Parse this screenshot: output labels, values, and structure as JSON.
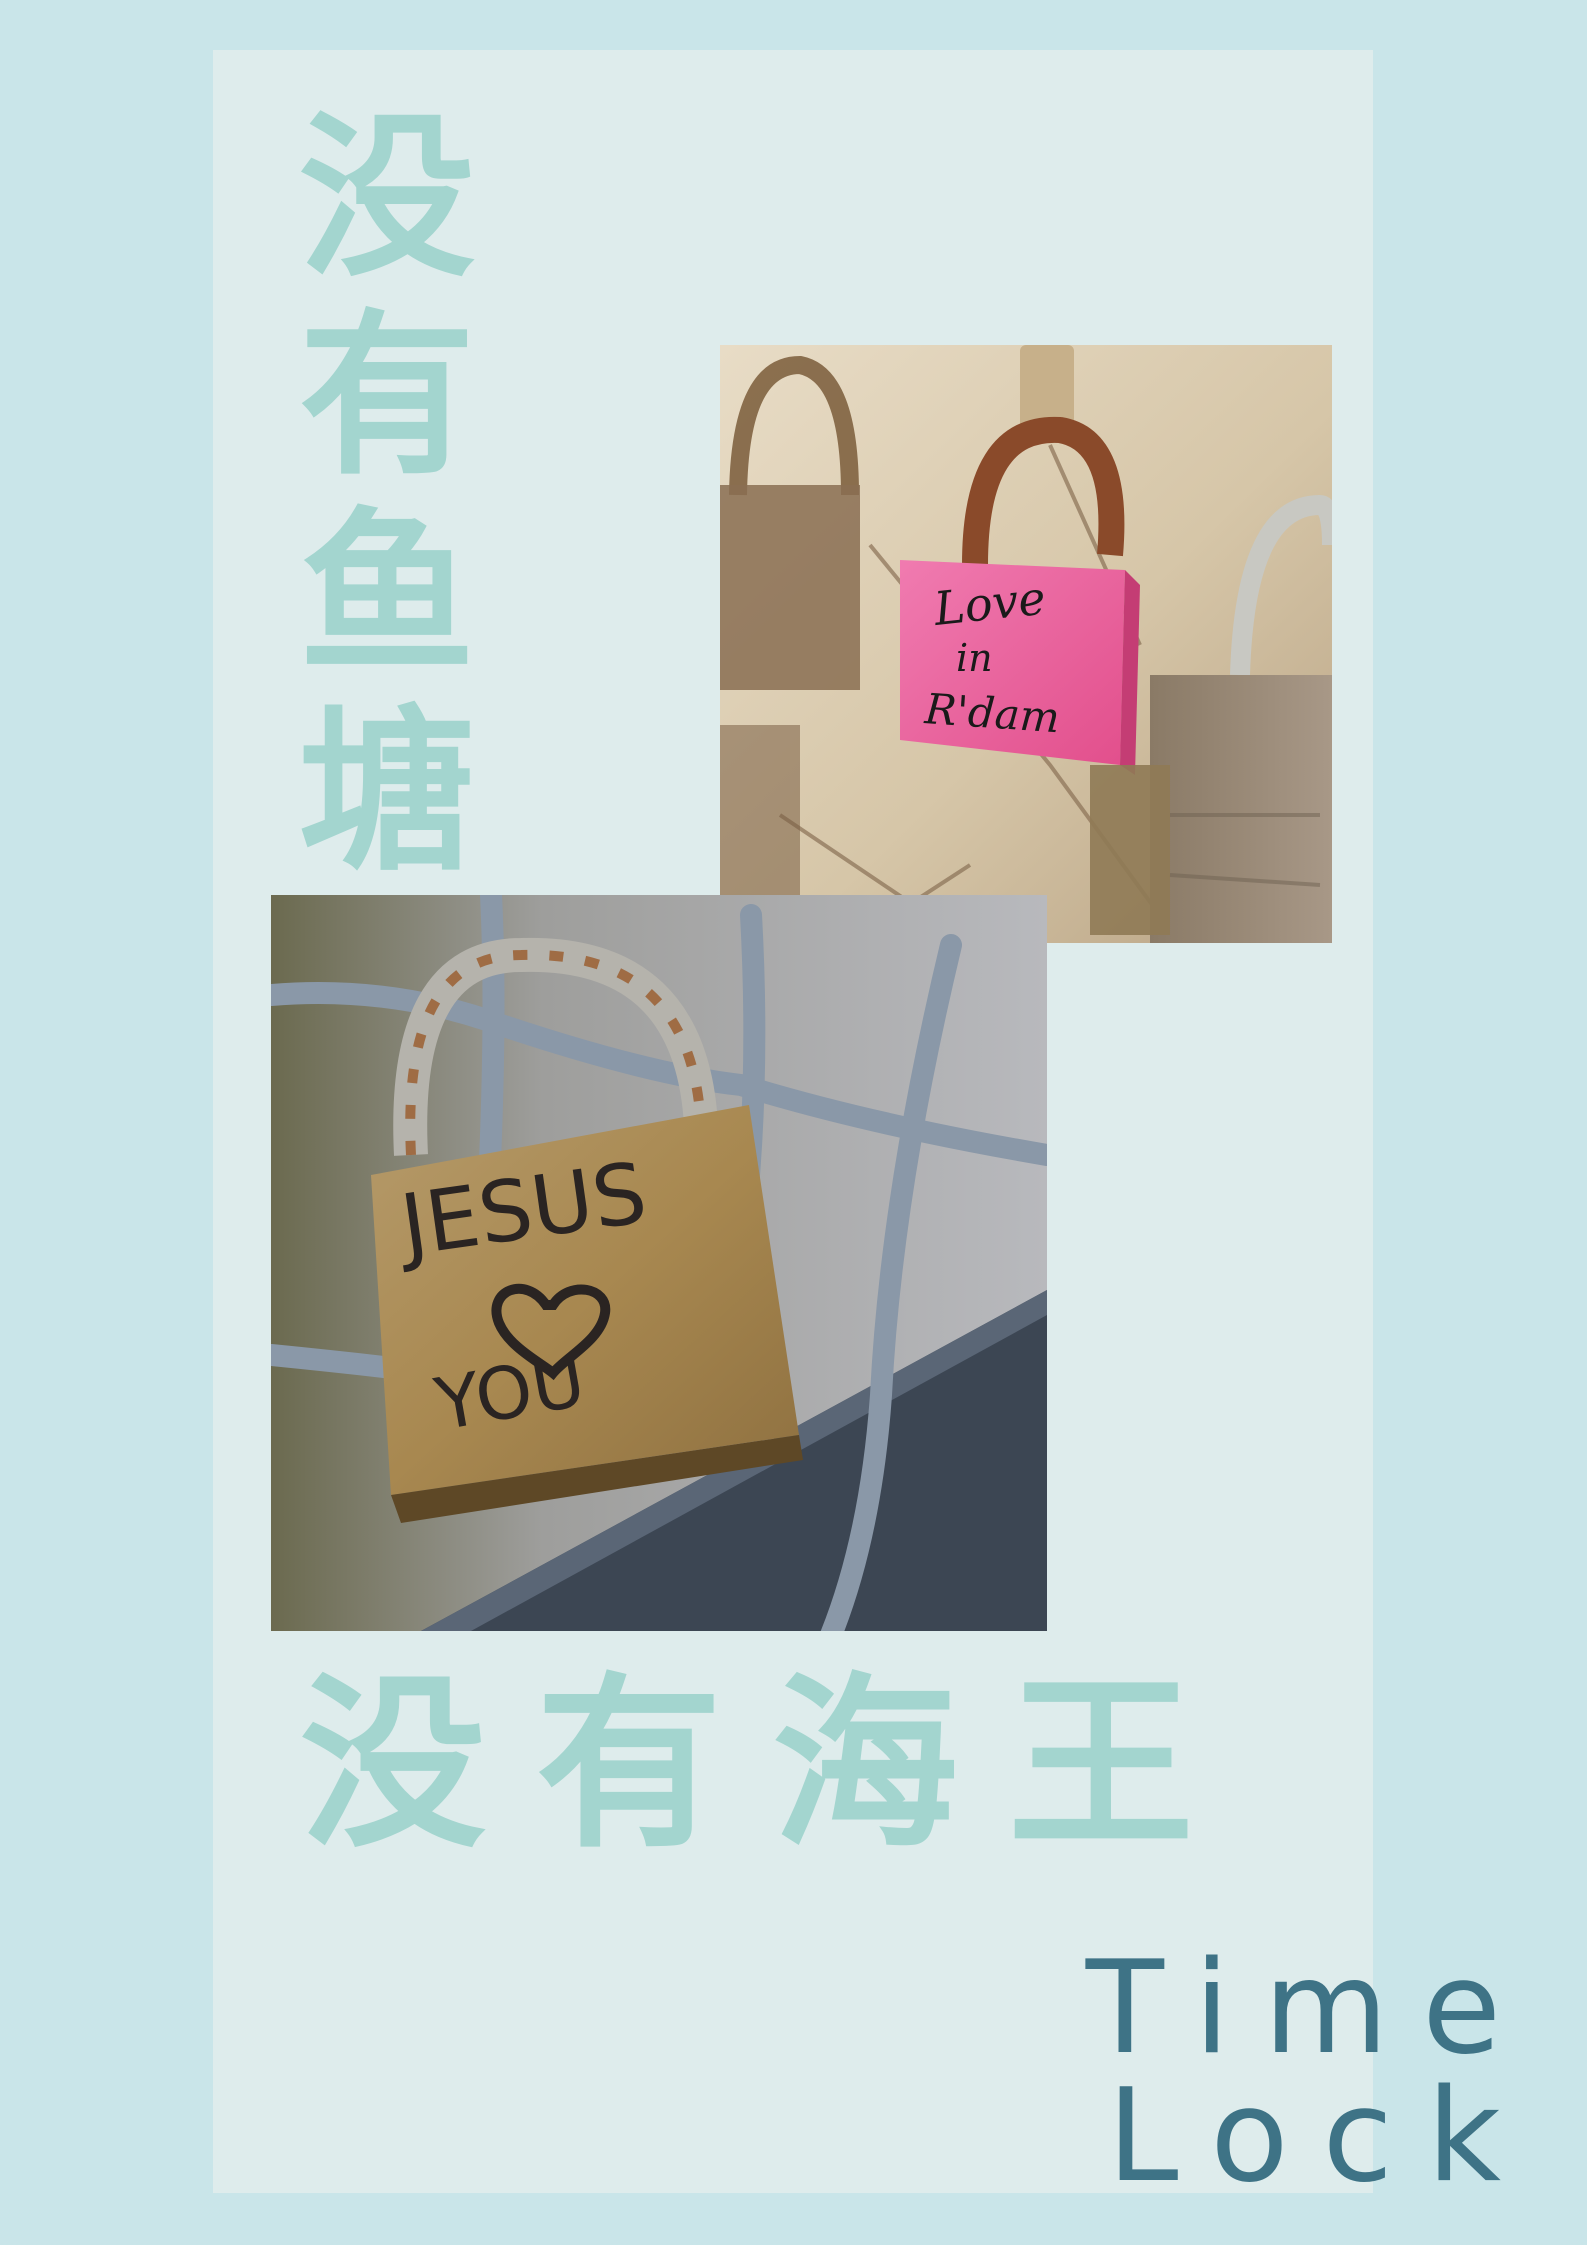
{
  "poster": {
    "vertical_title": "没\n有\n鱼\n塘",
    "horizontal_title": "没有海王",
    "brand_line1": "Time",
    "brand_line2": "Lock",
    "pink_lock_text_line1": "Love",
    "pink_lock_text_line2": "in",
    "pink_lock_text_line3": "R'dam",
    "gold_lock_text_line1": "JESUS",
    "gold_lock_text_line2": "YOU"
  },
  "colors": {
    "background": "#c9e5e9",
    "panel": "#deecec",
    "title": "#a3d5cf",
    "brand": "#3e7386"
  },
  "icons": {
    "pink_lock": "pink-padlock",
    "gold_lock": "brass-padlock",
    "heart": "heart-icon"
  }
}
